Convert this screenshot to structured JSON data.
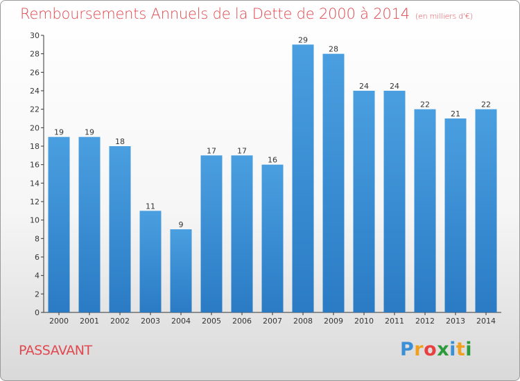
{
  "header": {
    "title": "Remboursements Annuels de la Dette de 2000 à 2014",
    "unit": "(en milliers d'€)"
  },
  "footer": {
    "commune": "PASSAVANT",
    "logo_letters": [
      "P",
      "r",
      "o",
      "x",
      "i",
      "t",
      "i"
    ],
    "logo_colors": [
      "#3b8fd6",
      "#f0a020",
      "#e84040",
      "#2c9a3a",
      "#3b8fd6",
      "#f0a020",
      "#2c9a3a"
    ]
  },
  "chart_data": {
    "type": "bar",
    "title": "Remboursements Annuels de la Dette de 2000 à 2014",
    "xlabel": "",
    "ylabel": "",
    "categories": [
      "2000",
      "2001",
      "2002",
      "2003",
      "2004",
      "2005",
      "2006",
      "2007",
      "2008",
      "2009",
      "2010",
      "2011",
      "2012",
      "2013",
      "2014"
    ],
    "values": [
      19,
      19,
      18,
      11,
      9,
      17,
      17,
      16,
      29,
      28,
      24,
      24,
      22,
      21,
      22
    ],
    "ylim": [
      0,
      30
    ],
    "yticks": [
      0,
      2,
      4,
      6,
      8,
      10,
      12,
      14,
      16,
      18,
      20,
      22,
      24,
      26,
      28,
      30
    ],
    "grid": false,
    "legend": "none",
    "bar_color": "#4a9fe0",
    "bar_color_dark": "#2a7bc4"
  }
}
